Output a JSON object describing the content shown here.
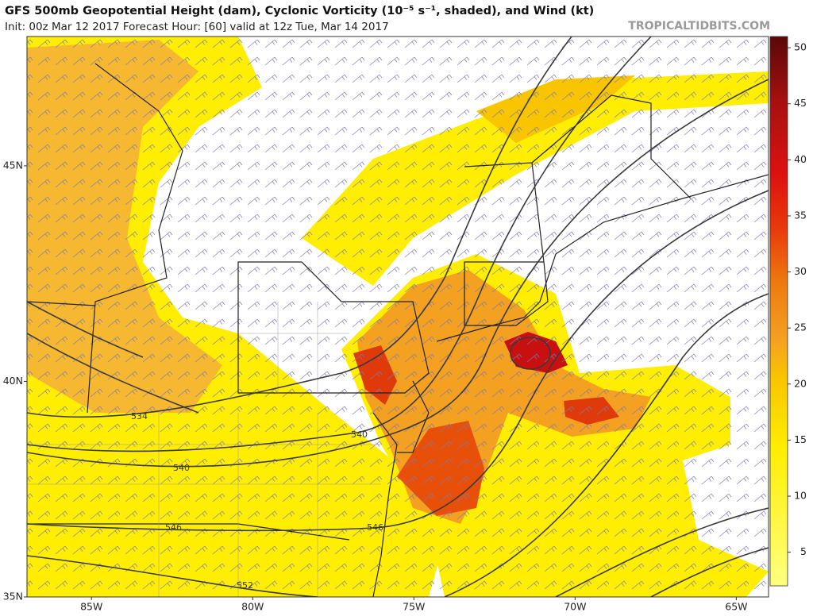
{
  "header": {
    "title": "GFS 500mb Geopotential Height (dam), Cyclonic Vorticity (10⁻⁵ s⁻¹, shaded), and Wind (kt)",
    "subtitle": "Init: 00z Mar 12 2017   Forecast Hour: [60]   valid at 12z Tue, Mar 14 2017",
    "source": "TROPICALTIDBITS.COM"
  },
  "map": {
    "lon_range": [
      -87,
      -64
    ],
    "lat_range": [
      35,
      48
    ],
    "lon_ticks": [
      {
        "value": -85,
        "label": "85W"
      },
      {
        "value": -80,
        "label": "80W"
      },
      {
        "value": -75,
        "label": "75W"
      },
      {
        "value": -70,
        "label": "70W"
      },
      {
        "value": -65,
        "label": "65W"
      }
    ],
    "lat_ticks": [
      {
        "value": 35,
        "label": "35N"
      },
      {
        "value": 40,
        "label": "40N"
      },
      {
        "value": 45,
        "label": "45N"
      }
    ],
    "contour_labels": [
      "534",
      "540",
      "546",
      "552",
      "540",
      "546"
    ]
  },
  "colorbar": {
    "range": [
      2,
      51
    ],
    "ticks": [
      5,
      10,
      15,
      20,
      25,
      30,
      35,
      40,
      45,
      50
    ]
  }
}
